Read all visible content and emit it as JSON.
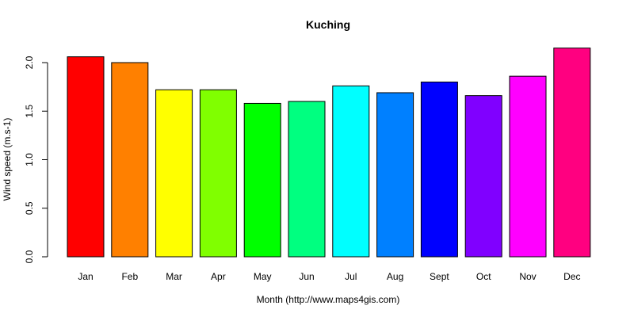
{
  "chart_data": {
    "type": "bar",
    "title": "Kuching",
    "xlabel": "Month (http://www.maps4gis.com)",
    "ylabel": "Wind speed (m.s-1)",
    "ylim": [
      0,
      2.2
    ],
    "yticks": [
      "0.0",
      "0.5",
      "1.0",
      "1.5",
      "2.0"
    ],
    "grid": false,
    "legend": "none",
    "categories": [
      "Jan",
      "Feb",
      "Mar",
      "Apr",
      "May",
      "Jun",
      "Jul",
      "Aug",
      "Sept",
      "Oct",
      "Nov",
      "Dec"
    ],
    "values": [
      2.06,
      2.0,
      1.72,
      1.72,
      1.58,
      1.6,
      1.76,
      1.69,
      1.8,
      1.66,
      1.86,
      2.15
    ],
    "colors": [
      "#FF0000",
      "#FF8000",
      "#FFFF00",
      "#80FF00",
      "#00FF00",
      "#00FF80",
      "#00FFFF",
      "#0080FF",
      "#0000FF",
      "#8000FF",
      "#FF00FF",
      "#FF0080"
    ]
  }
}
